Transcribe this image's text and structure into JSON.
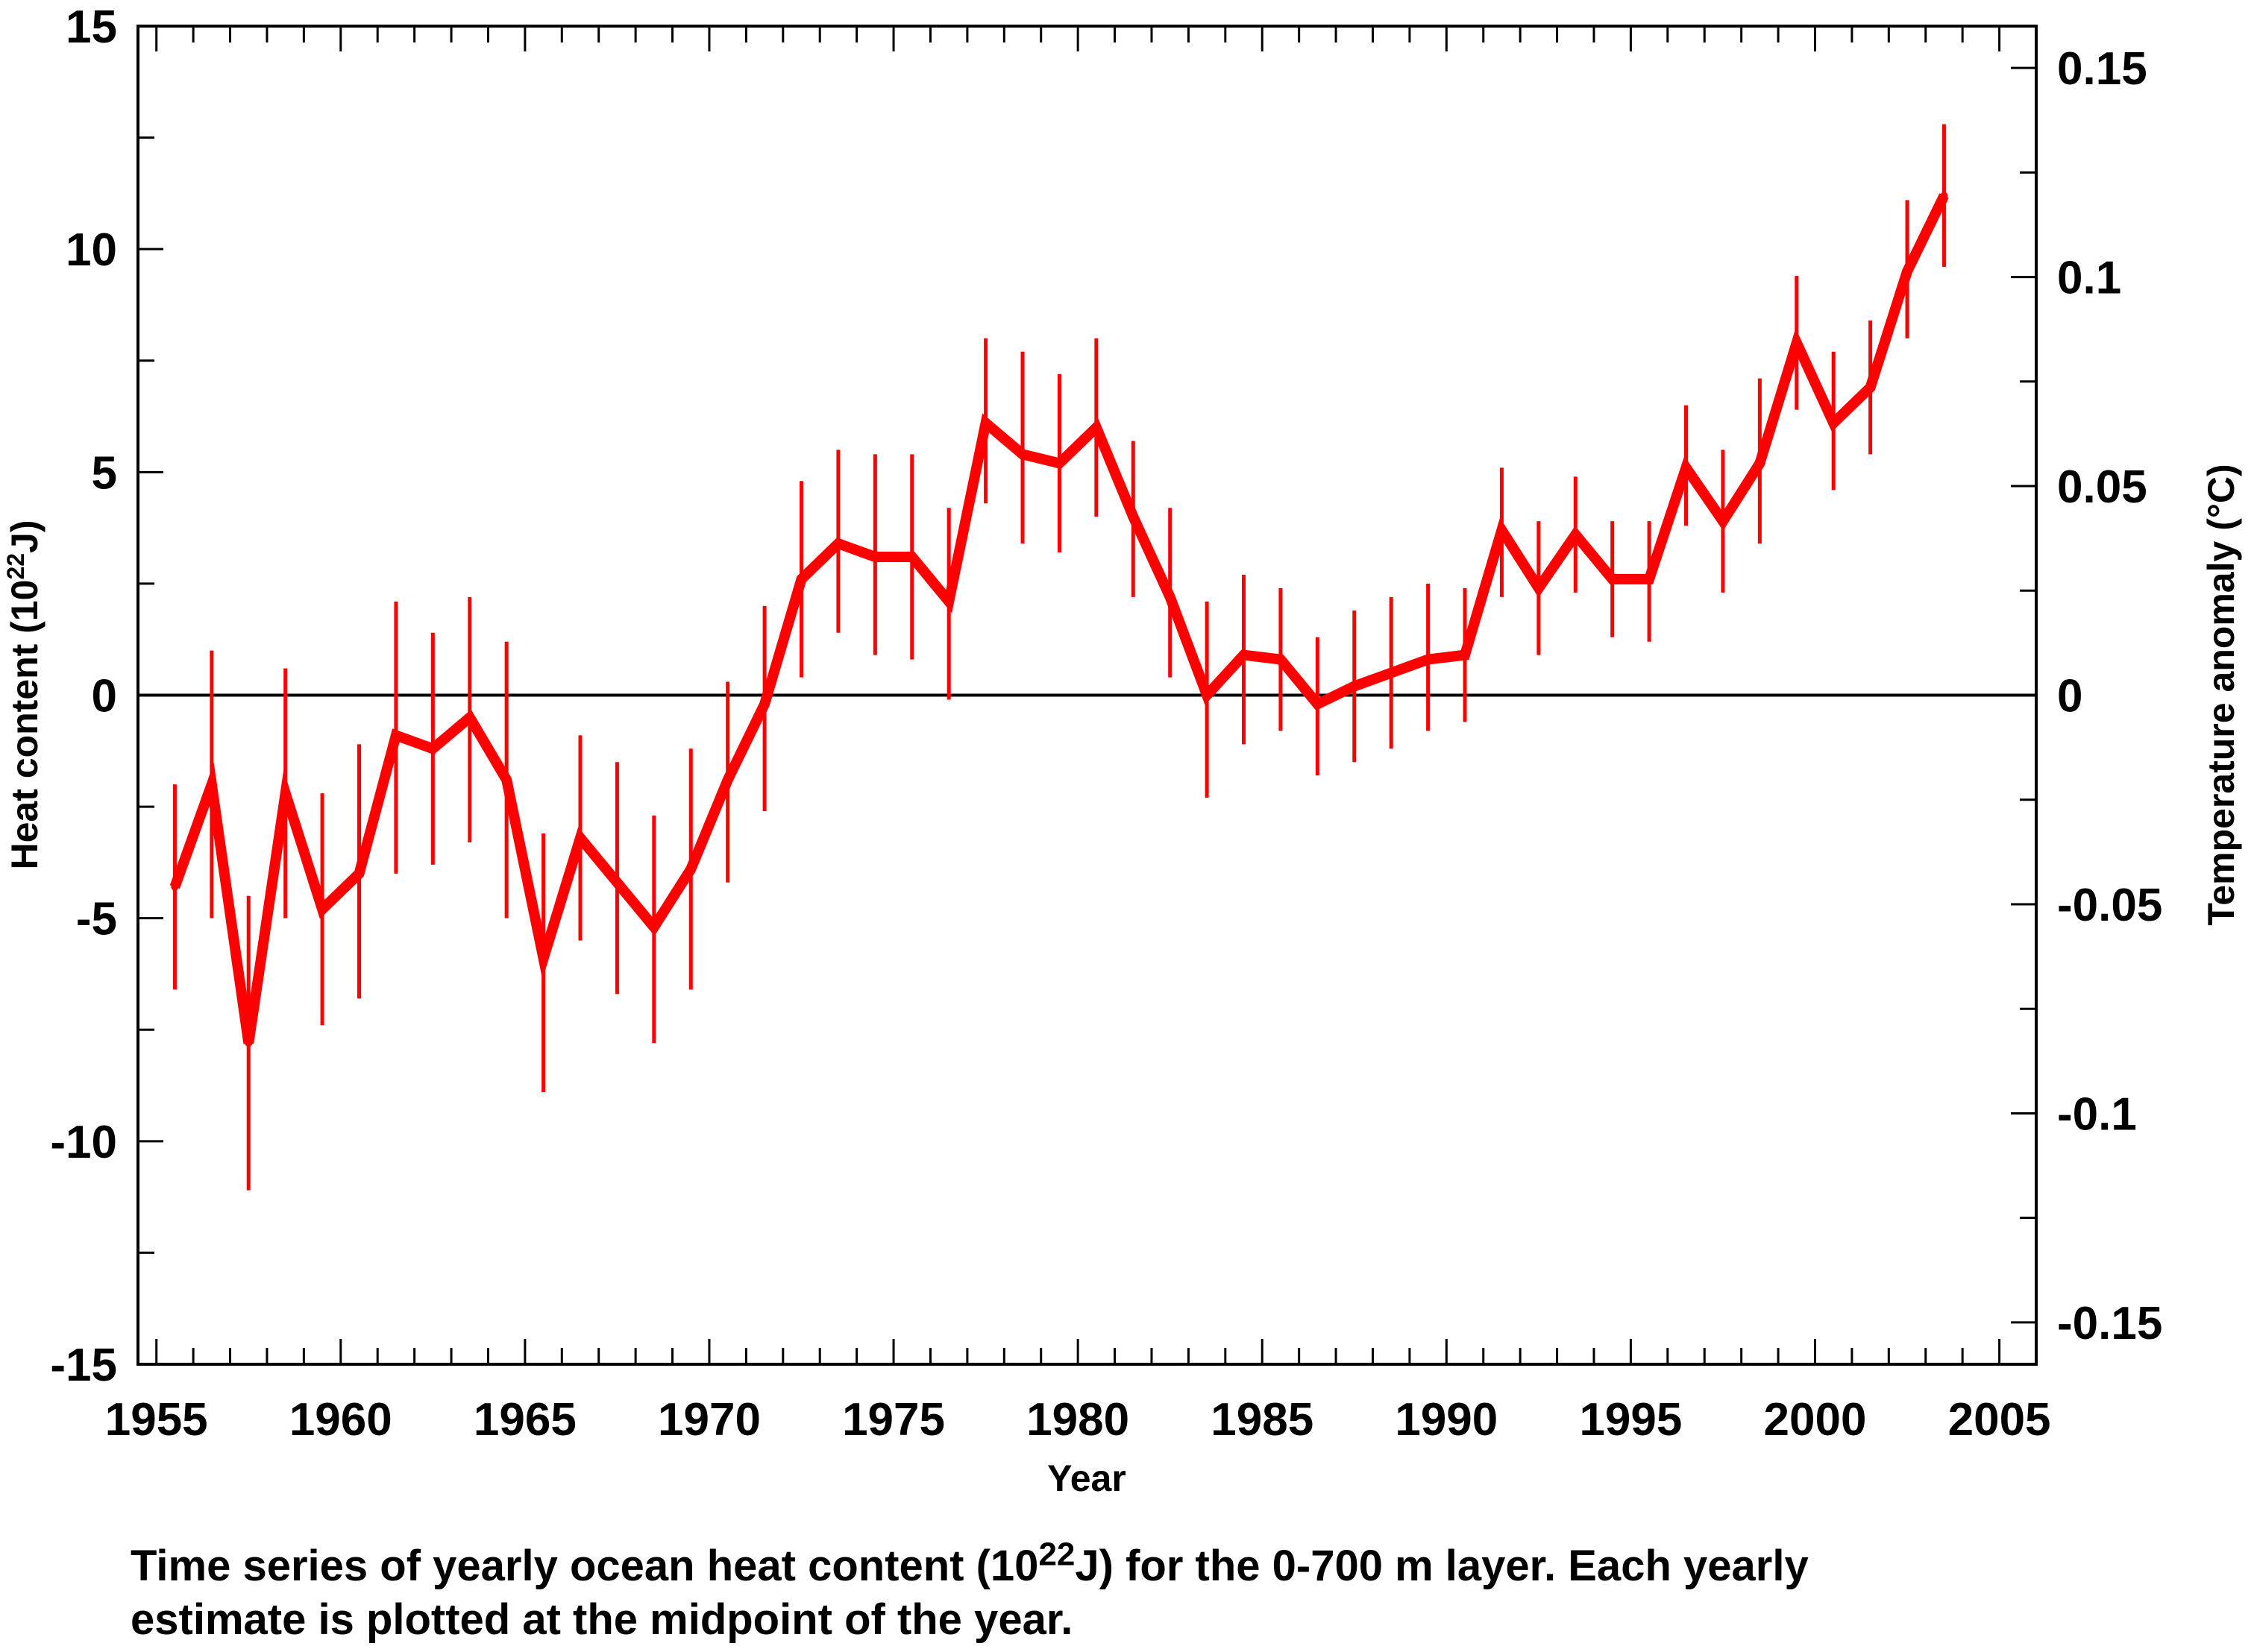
{
  "chart_data": {
    "type": "line",
    "title": "",
    "xlabel": "Year",
    "ylabel_left": "Heat content (10",
    "ylabel_left_sup": "22",
    "ylabel_left_unit": "J)",
    "ylabel_right": "Temperature anomaly (°C)",
    "xlim": [
      1954.5,
      2006
    ],
    "ylim": [
      -15,
      15
    ],
    "y2lim": [
      -0.16,
      0.16
    ],
    "x_ticks": [
      1955,
      1960,
      1965,
      1970,
      1975,
      1980,
      1985,
      1990,
      1995,
      2000,
      2005
    ],
    "x_tick_labels": [
      "1955",
      "1960",
      "1965",
      "1970",
      "1975",
      "1980",
      "1985",
      "1990",
      "1995",
      "2000",
      "2005"
    ],
    "y_ticks": [
      15,
      10,
      5,
      0,
      -5,
      -10,
      -15
    ],
    "y_tick_labels": [
      "15",
      "10",
      "5",
      "0",
      "-5",
      "-10",
      "-15"
    ],
    "y2_ticks": [
      0.15,
      0.1,
      0.05,
      0,
      -0.05,
      -0.1,
      -0.15
    ],
    "y2_tick_labels": [
      "0.15",
      "0.1",
      "0.05",
      "0",
      "-0.05",
      "-0.1",
      "-0.15"
    ],
    "zero_line": true,
    "grid": false,
    "color": "#ff0000",
    "series": [
      {
        "x": [
          1955.5,
          1956.5,
          1957.5,
          1958.5,
          1959.5,
          1960.5,
          1961.5,
          1962.5,
          1963.5,
          1964.5,
          1965.5,
          1966.5,
          1967.5,
          1968.5,
          1969.5,
          1970.5,
          1971.5,
          1972.5,
          1973.5,
          1974.5,
          1975.5,
          1976.5,
          1977.5,
          1978.5,
          1979.5,
          1980.5,
          1981.5,
          1982.5,
          1983.5,
          1984.5,
          1985.5,
          1986.5,
          1987.5,
          1988.5,
          1989.5,
          1990.5,
          1991.5,
          1992.5,
          1993.5,
          1994.5,
          1995.5,
          1996.5,
          1997.5,
          1998.5,
          1999.5,
          2000.5,
          2001.5,
          2002.5,
          2003.5
        ],
        "y": [
          -4.3,
          -2.0,
          -7.8,
          -2.2,
          -4.8,
          -4.0,
          -0.9,
          -1.2,
          -0.5,
          -1.9,
          -5.9,
          -3.2,
          -4.2,
          -5.2,
          -3.9,
          -1.9,
          -0.2,
          2.6,
          3.4,
          3.1,
          3.1,
          2.1,
          6.1,
          5.4,
          5.2,
          6.0,
          4.0,
          2.2,
          0.0,
          0.9,
          0.8,
          -0.2,
          0.2,
          0.5,
          0.8,
          0.9,
          3.7,
          2.4,
          3.6,
          2.6,
          2.6,
          5.1,
          3.9,
          5.2,
          7.9,
          6.1,
          6.9,
          9.5,
          11.2
        ],
        "error_low": [
          -6.6,
          -5.0,
          -11.1,
          -5.0,
          -7.4,
          -6.8,
          -4.0,
          -3.8,
          -3.3,
          -5.0,
          -8.9,
          -5.5,
          -6.7,
          -7.8,
          -6.6,
          -4.2,
          -2.6,
          0.4,
          1.4,
          0.9,
          0.8,
          -0.1,
          4.3,
          3.4,
          3.2,
          4.0,
          2.2,
          0.4,
          -2.3,
          -1.1,
          -0.8,
          -1.8,
          -1.5,
          -1.2,
          -0.8,
          -0.6,
          2.2,
          0.9,
          2.3,
          1.3,
          1.2,
          3.8,
          2.3,
          3.4,
          6.4,
          4.6,
          5.4,
          8.0,
          9.6
        ],
        "error_high": [
          -2.0,
          1.0,
          -4.5,
          0.6,
          -2.2,
          -1.1,
          2.1,
          1.4,
          2.2,
          1.2,
          -3.1,
          -0.9,
          -1.5,
          -2.7,
          -1.2,
          0.3,
          2.0,
          4.8,
          5.5,
          5.4,
          5.4,
          4.2,
          8.0,
          7.7,
          7.2,
          8.0,
          5.7,
          4.2,
          2.1,
          2.7,
          2.4,
          1.3,
          1.9,
          2.2,
          2.5,
          2.4,
          5.1,
          3.9,
          4.9,
          3.9,
          3.9,
          6.5,
          5.5,
          7.1,
          9.4,
          7.7,
          8.4,
          11.1,
          12.8
        ]
      }
    ]
  },
  "caption": {
    "line1_prefix": "Time series of yearly ocean heat content (10",
    "line1_sup": "22",
    "line1_suffix": "J) for the 0-700 m layer. Each yearly",
    "line2": "estimate is plotted at the midpoint of the year."
  }
}
